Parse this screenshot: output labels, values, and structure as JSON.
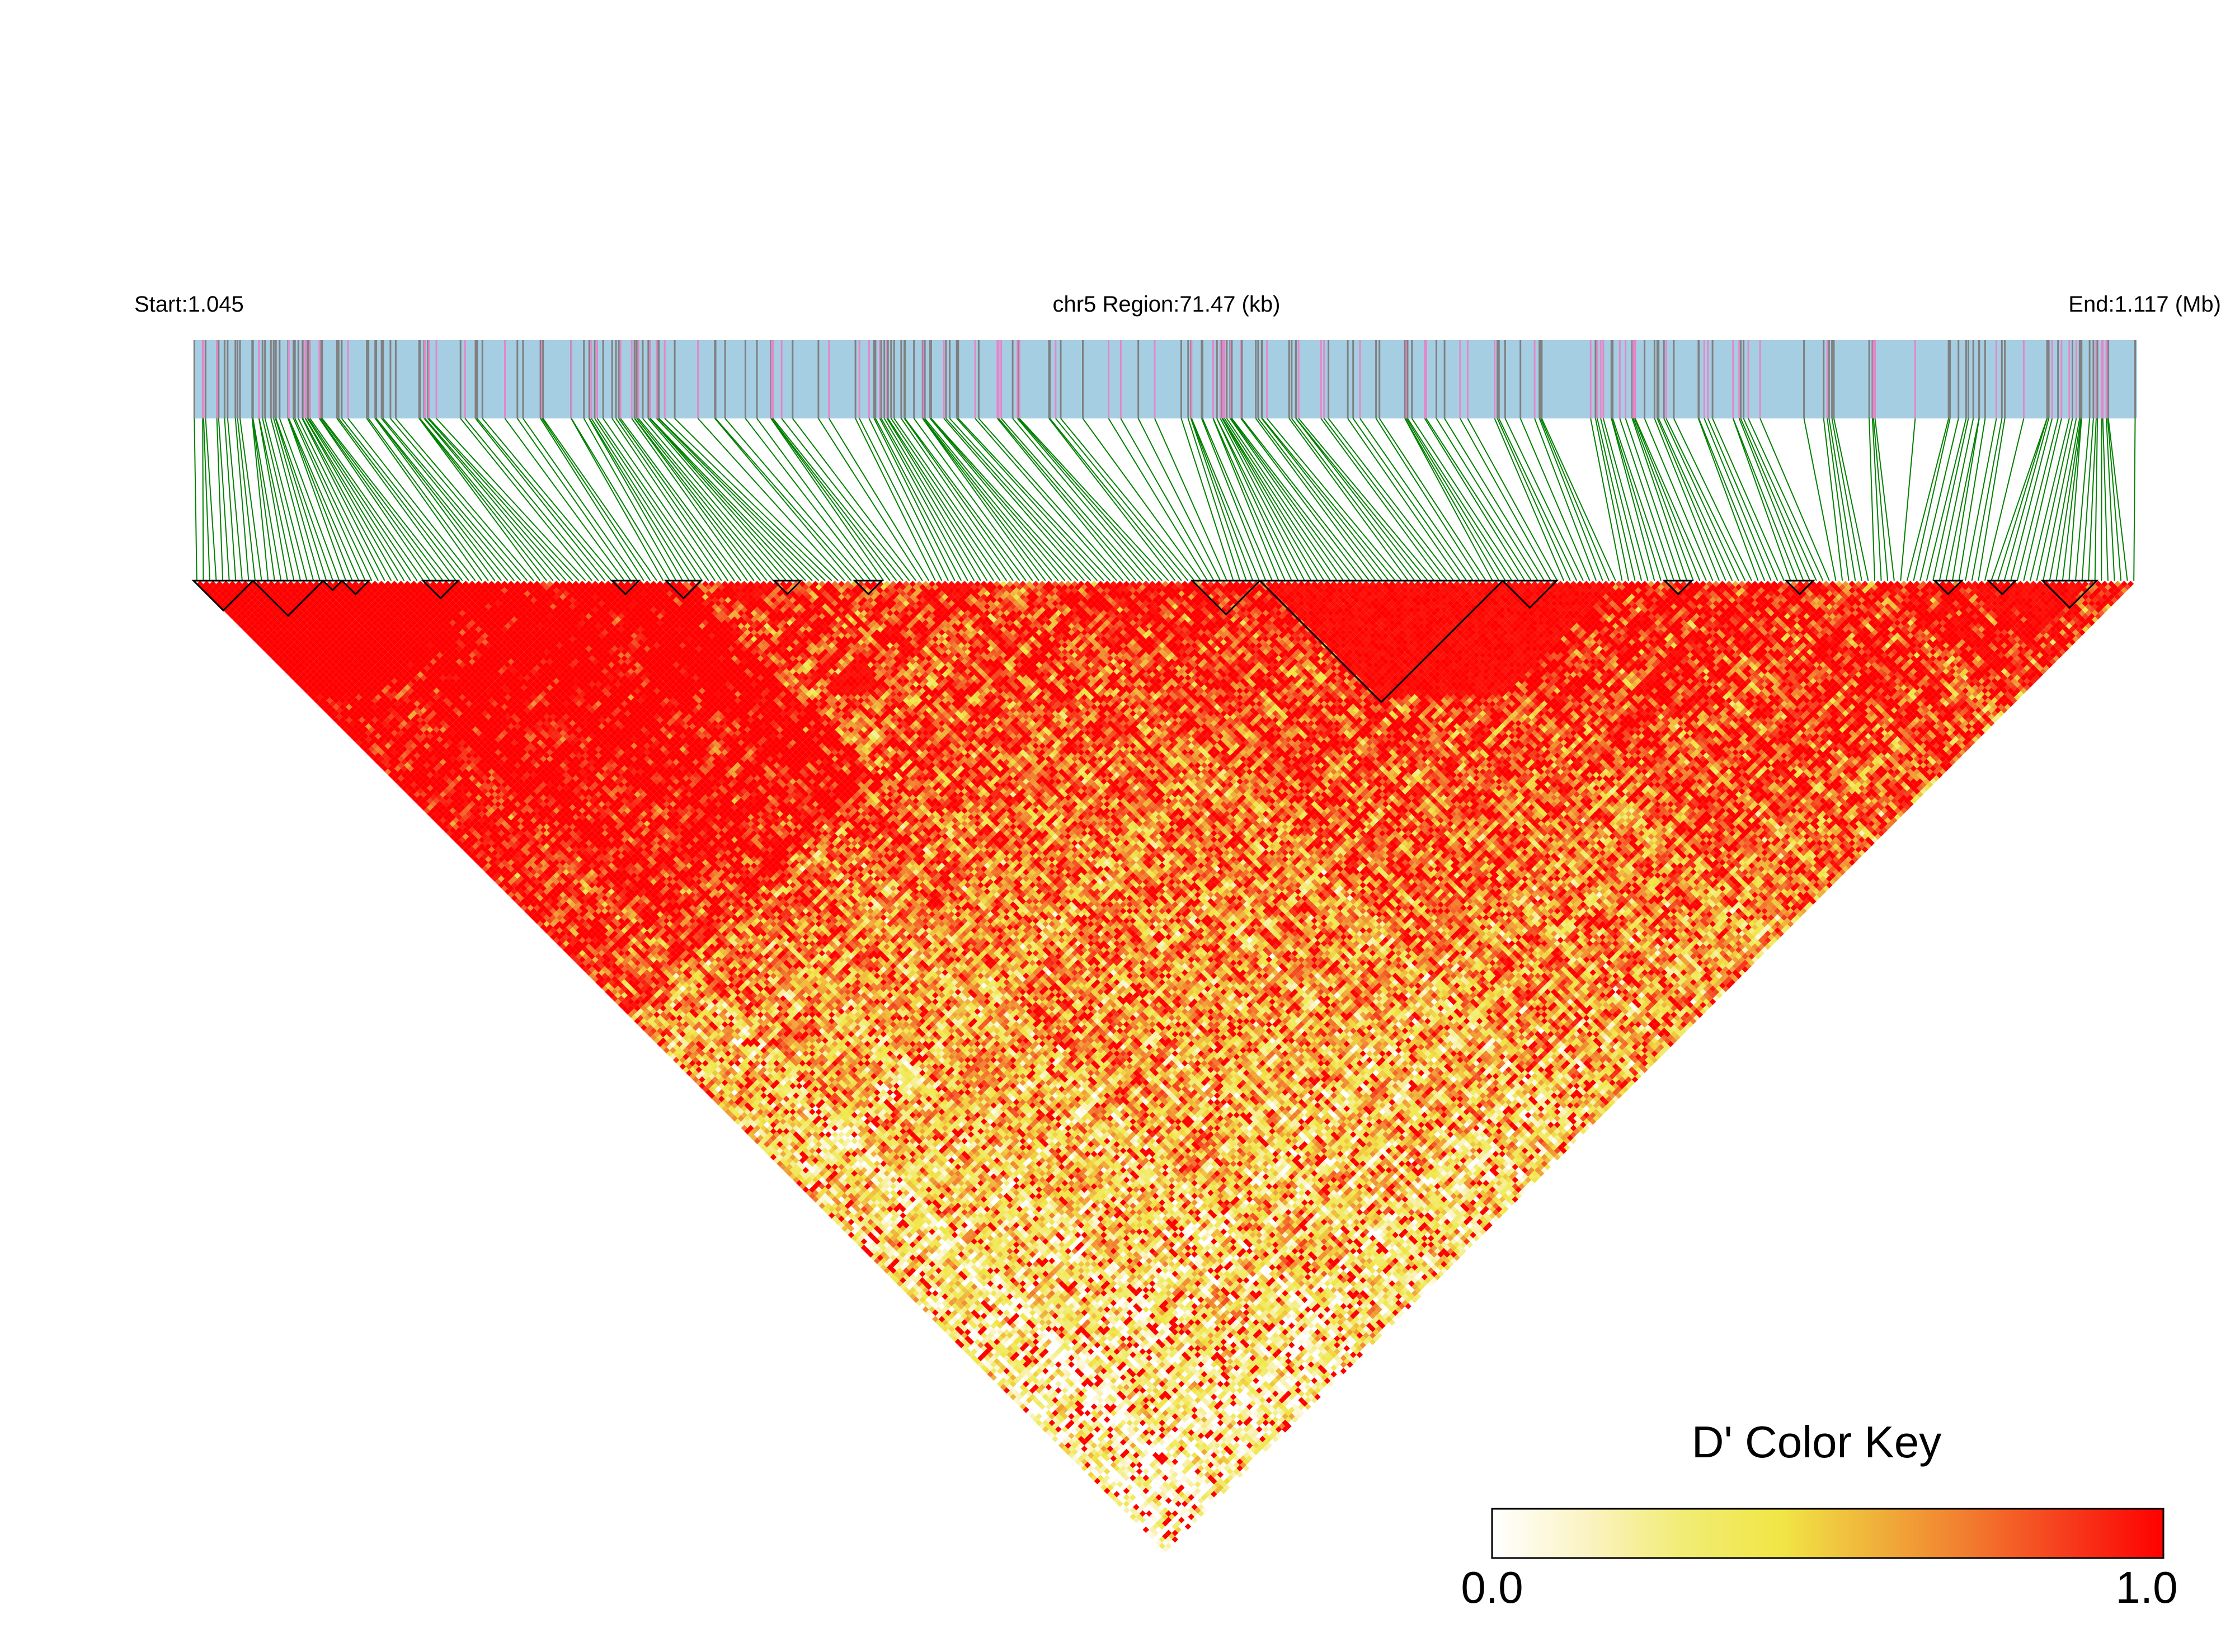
{
  "chart_data": {
    "type": "heatmap",
    "subtype": "linkage-disequilibrium-triangle",
    "metric": "D'",
    "chromosome": "chr5",
    "start_label": "Start:1.045",
    "region_label": "chr5 Region:71.47 (kb)",
    "end_label": "End:1.117 (Mb)",
    "start_mb": 1.045,
    "end_mb": 1.117,
    "region_kb": 71.47,
    "colors": {
      "track_background": "#a6cee3",
      "marker_grey": "#808080",
      "marker_pink": "#e487c8",
      "connector": "#008000",
      "block_outline": "#000000"
    },
    "color_key": {
      "title": "D' Color Key",
      "min_label": "0.0",
      "max_label": "1.0",
      "min": 0.0,
      "max": 1.0,
      "stops": [
        "#ffffff",
        "#fbf3c2",
        "#f1ec74",
        "#f1e646",
        "#f0b13a",
        "#f27a2e",
        "#f63b1c",
        "#ff0000"
      ]
    },
    "ld_blocks_approx_mb": [
      [
        1.045,
        1.0472
      ],
      [
        1.0472,
        1.0498
      ],
      [
        1.0498,
        1.0505
      ],
      [
        1.0505,
        1.0515
      ],
      [
        1.0535,
        1.0548
      ],
      [
        1.0605,
        1.0615
      ],
      [
        1.0625,
        1.0638
      ],
      [
        1.0665,
        1.0675
      ],
      [
        1.0695,
        1.0705
      ],
      [
        1.082,
        1.0845
      ],
      [
        1.0845,
        1.0935
      ],
      [
        1.0935,
        1.0955
      ],
      [
        1.0995,
        1.1005
      ],
      [
        1.104,
        1.105
      ],
      [
        1.1095,
        1.1105
      ],
      [
        1.1115,
        1.1125
      ],
      [
        1.1135,
        1.1155
      ]
    ]
  }
}
